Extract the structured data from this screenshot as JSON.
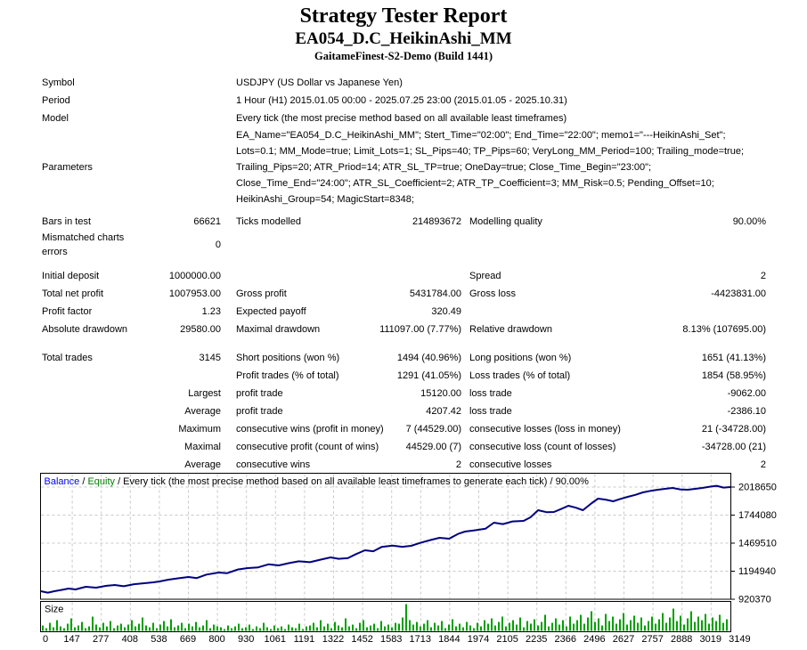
{
  "header": {
    "title": "Strategy Tester Report",
    "subtitle": "EA054_D.C_HeikinAshi_MM",
    "build": "GaitameFinest-S2-Demo (Build 1441)"
  },
  "info_rows": [
    {
      "label": "Symbol",
      "value": "USDJPY (US Dollar vs Japanese Yen)"
    },
    {
      "label": "Period",
      "value": "1 Hour (H1) 2015.01.05 00:00 - 2025.07.25 23:00 (2015.01.05 - 2025.10.31)"
    },
    {
      "label": "Model",
      "value": "Every tick (the most precise method based on all available least timeframes)"
    },
    {
      "label": "Parameters",
      "value": "EA_Name=\"EA054_D.C_HeikinAshi_MM\"; Stert_Time=\"02:00\"; End_Time=\"22:00\"; memo1=\"---HeikinAshi_Set\"; Lots=0.1; MM_Mode=true; Limit_Lots=1; SL_Pips=40; TP_Pips=60; VeryLong_MM_Period=100; Trailing_mode=true; Trailing_Pips=20; ATR_Priod=14; ATR_SL_TP=true; OneDay=true; Close_Time_Begin=\"23:00\"; Close_Time_End=\"24:00\"; ATR_SL_Coefficient=2; ATR_TP_Coefficient=3; MM_Risk=0.5; Pending_Offset=10; HeikinAshi_Group=54; MagicStart=8348;"
    }
  ],
  "stats": {
    "groups": [
      {
        "rows": [
          {
            "c1": "Bars in test",
            "v1": "66621",
            "c2": "Ticks modelled",
            "v2": "214893672",
            "c3": "Modelling quality",
            "v3": "90.00%"
          },
          {
            "c1": "Mismatched charts errors",
            "v1": "0",
            "c2": "",
            "v2": "",
            "c3": "",
            "v3": ""
          }
        ]
      },
      {
        "rows": [
          {
            "c1": "Initial deposit",
            "v1": "1000000.00",
            "c2": "",
            "v2": "",
            "c3": "Spread",
            "v3": "2"
          },
          {
            "c1": "Total net profit",
            "v1": "1007953.00",
            "c2": "Gross profit",
            "v2": "5431784.00",
            "c3": "Gross loss",
            "v3": "-4423831.00"
          },
          {
            "c1": "Profit factor",
            "v1": "1.23",
            "c2": "Expected payoff",
            "v2": "320.49",
            "c3": "",
            "v3": ""
          },
          {
            "c1": "Absolute drawdown",
            "v1": "29580.00",
            "c2": "Maximal drawdown",
            "v2": "111097.00 (7.77%)",
            "c3": "Relative drawdown",
            "v3": "8.13% (107695.00)"
          }
        ]
      },
      {
        "rows": [
          {
            "c1": "Total trades",
            "v1": "3145",
            "c2": "Short positions (won %)",
            "v2": "1494 (40.96%)",
            "c3": "Long positions (won %)",
            "v3": "1651 (41.13%)"
          },
          {
            "c1": "",
            "v1": "",
            "c2": "Profit trades (% of total)",
            "v2": "1291 (41.05%)",
            "c3": "Loss trades (% of total)",
            "v3": "1854 (58.95%)"
          },
          {
            "c1": "",
            "v1": "Largest",
            "c2": "profit trade",
            "v2": "15120.00",
            "c3": "loss trade",
            "v3": "-9062.00"
          },
          {
            "c1": "",
            "v1": "Average",
            "c2": "profit trade",
            "v2": "4207.42",
            "c3": "loss trade",
            "v3": "-2386.10"
          },
          {
            "c1": "",
            "v1": "Maximum",
            "c2": "consecutive wins (profit in money)",
            "v2": "7 (44529.00)",
            "c3": "consecutive losses (loss in money)",
            "v3": "21 (-34728.00)"
          },
          {
            "c1": "",
            "v1": "Maximal",
            "c2": "consecutive profit (count of wins)",
            "v2": "44529.00 (7)",
            "c3": "consecutive loss (count of losses)",
            "v3": "-34728.00 (21)"
          },
          {
            "c1": "",
            "v1": "Average",
            "c2": "consecutive wins",
            "v2": "2",
            "c3": "consecutive losses",
            "v3": "2"
          }
        ]
      }
    ]
  },
  "chart_data": {
    "type": "line",
    "header": {
      "balance_label": "Balance",
      "separator1": " / ",
      "equity_label": "Equity",
      "rest": " / Every tick (the most precise method based on all available least timeframes to generate each tick) / 90.00%"
    },
    "colors": {
      "balance_label": "#0000ff",
      "equity_label": "#008000",
      "line": "#000080",
      "bars": "#00a000",
      "grid": "#c9c9c9",
      "border": "#000000"
    },
    "y_ticks": [
      2018650,
      1744080,
      1469510,
      1194940,
      920370
    ],
    "y_axis_base": 920370,
    "y_axis_top_tick": 2018650,
    "x_ticks": [
      0,
      147,
      277,
      408,
      538,
      669,
      800,
      930,
      1061,
      1191,
      1322,
      1452,
      1583,
      1713,
      1844,
      1974,
      2105,
      2235,
      2366,
      2496,
      2627,
      2757,
      2888,
      3019,
      3149
    ],
    "series": [
      {
        "name": "Balance",
        "points": [
          [
            0,
            998800
          ],
          [
            0.01,
            985000
          ],
          [
            0.02,
            1000000
          ],
          [
            0.03,
            1012000
          ],
          [
            0.04,
            1025000
          ],
          [
            0.05,
            1016000
          ],
          [
            0.065,
            1042400
          ],
          [
            0.08,
            1033700
          ],
          [
            0.095,
            1052000
          ],
          [
            0.107,
            1059900
          ],
          [
            0.12,
            1048000
          ],
          [
            0.135,
            1068000
          ],
          [
            0.15,
            1077300
          ],
          [
            0.163,
            1086000
          ],
          [
            0.172,
            1094700
          ],
          [
            0.185,
            1112000
          ],
          [
            0.2,
            1126000
          ],
          [
            0.214,
            1138300
          ],
          [
            0.226,
            1128000
          ],
          [
            0.24,
            1162000
          ],
          [
            0.258,
            1181900
          ],
          [
            0.27,
            1176000
          ],
          [
            0.286,
            1212000
          ],
          [
            0.3,
            1225500
          ],
          [
            0.315,
            1232000
          ],
          [
            0.33,
            1262000
          ],
          [
            0.345,
            1251700
          ],
          [
            0.36,
            1274000
          ],
          [
            0.374,
            1292000
          ],
          [
            0.39,
            1283000
          ],
          [
            0.405,
            1307000
          ],
          [
            0.42,
            1330000
          ],
          [
            0.432,
            1316000
          ],
          [
            0.445,
            1322000
          ],
          [
            0.457,
            1362000
          ],
          [
            0.47,
            1400000
          ],
          [
            0.482,
            1390000
          ],
          [
            0.494,
            1432000
          ],
          [
            0.51,
            1446000
          ],
          [
            0.524,
            1434000
          ],
          [
            0.537,
            1443500
          ],
          [
            0.55,
            1472000
          ],
          [
            0.565,
            1500000
          ],
          [
            0.578,
            1522000
          ],
          [
            0.592,
            1513200
          ],
          [
            0.605,
            1560000
          ],
          [
            0.615,
            1582900
          ],
          [
            0.63,
            1596000
          ],
          [
            0.645,
            1612000
          ],
          [
            0.657,
            1670100
          ],
          [
            0.67,
            1656000
          ],
          [
            0.684,
            1682000
          ],
          [
            0.7,
            1687600
          ],
          [
            0.71,
            1722000
          ],
          [
            0.721,
            1792200
          ],
          [
            0.734,
            1772000
          ],
          [
            0.744,
            1774700
          ],
          [
            0.755,
            1806000
          ],
          [
            0.765,
            1835800
          ],
          [
            0.776,
            1816000
          ],
          [
            0.786,
            1792200
          ],
          [
            0.799,
            1862000
          ],
          [
            0.808,
            1905500
          ],
          [
            0.819,
            1896000
          ],
          [
            0.83,
            1879400
          ],
          [
            0.84,
            1902000
          ],
          [
            0.851,
            1922900
          ],
          [
            0.862,
            1942000
          ],
          [
            0.873,
            1966500
          ],
          [
            0.884,
            1981000
          ],
          [
            0.895,
            1992700
          ],
          [
            0.905,
            2001000
          ],
          [
            0.916,
            2010100
          ],
          [
            0.927,
            1996000
          ],
          [
            0.938,
            1992700
          ],
          [
            0.949,
            2001000
          ],
          [
            0.959,
            2010100
          ],
          [
            0.97,
            2022000
          ],
          [
            0.98,
            2031000
          ],
          [
            0.99,
            2013000
          ],
          [
            1,
            2018650
          ]
        ]
      }
    ],
    "size_panel": {
      "label": "Size",
      "heights": [
        6,
        3,
        9,
        4,
        12,
        5,
        3,
        8,
        14,
        4,
        6,
        10,
        3,
        5,
        16,
        7,
        4,
        9,
        5,
        11,
        3,
        6,
        8,
        4,
        7,
        12,
        5,
        8,
        15,
        6,
        4,
        9,
        3,
        7,
        11,
        5,
        13,
        4,
        6,
        9,
        3,
        8,
        5,
        10,
        4,
        6,
        12,
        3,
        7,
        5,
        4,
        2,
        6,
        3,
        5,
        8,
        3,
        4,
        7,
        2,
        5,
        3,
        9,
        4,
        2,
        6,
        3,
        5,
        2,
        7,
        4,
        3,
        8,
        2,
        5,
        6,
        9,
        4,
        12,
        5,
        8,
        3,
        10,
        6,
        4,
        14,
        5,
        7,
        3,
        9,
        12,
        4,
        6,
        8,
        3,
        11,
        5,
        7,
        4,
        9,
        8,
        15,
        30,
        12,
        7,
        10,
        5,
        8,
        12,
        4,
        9,
        6,
        11,
        3,
        7,
        13,
        5,
        8,
        4,
        10,
        6,
        3,
        9,
        5,
        12,
        8,
        14,
        6,
        10,
        16,
        5,
        9,
        12,
        7,
        15,
        4,
        11,
        8,
        13,
        6,
        10,
        18,
        5,
        9,
        14,
        7,
        12,
        5,
        16,
        8,
        12,
        18,
        8,
        15,
        22,
        10,
        14,
        6,
        19,
        11,
        16,
        8,
        13,
        20,
        7,
        12,
        17,
        9,
        15,
        6,
        11,
        16,
        8,
        13,
        20,
        9,
        15,
        25,
        11,
        17,
        7,
        14,
        22,
        10,
        16,
        12,
        19,
        8,
        15,
        11,
        18,
        9,
        13
      ]
    }
  }
}
